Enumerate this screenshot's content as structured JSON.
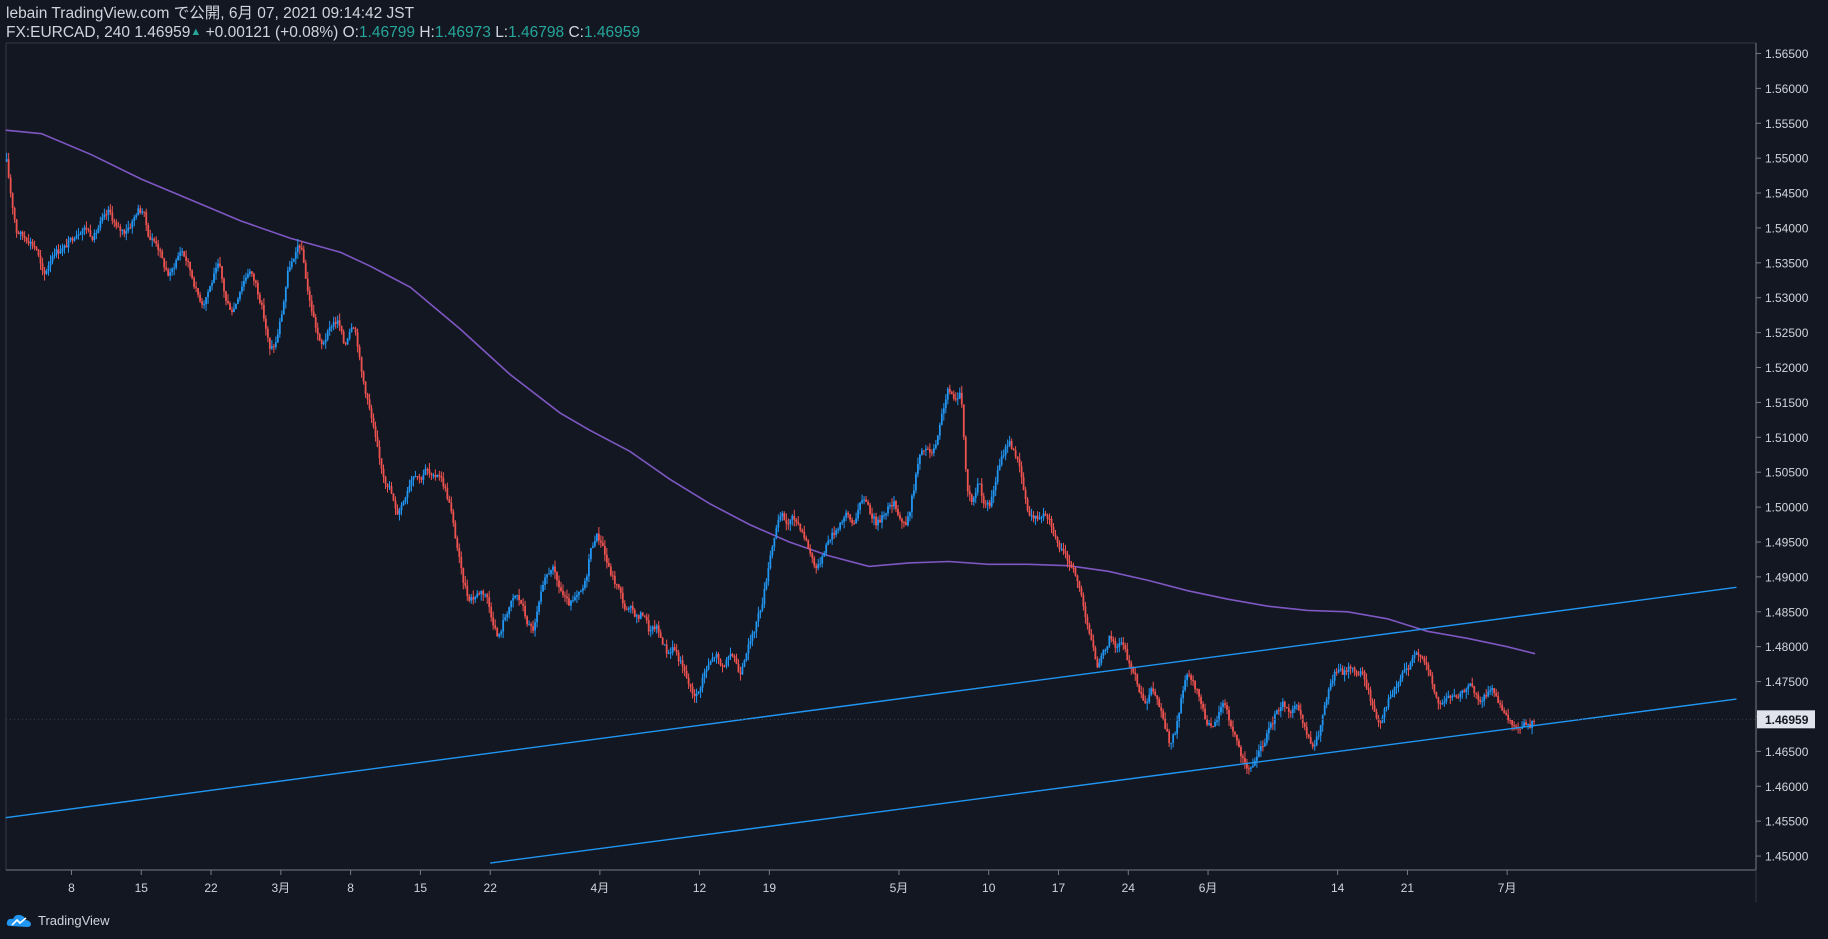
{
  "header": {
    "line1": "lebain TradingView.com で公開, 6月 07, 2021 09:14:42 JST",
    "symbol": "FX:EURCAD, 240",
    "last": "1.46959",
    "change": "+0.00121 (+0.08%)",
    "o_label": "O:",
    "o_value": "1.46799",
    "h_label": "H:",
    "h_value": "1.46973",
    "l_label": "L:",
    "l_value": "1.46798",
    "c_label": "C:",
    "c_value": "1.46959"
  },
  "footer": {
    "brand": "TradingView"
  },
  "colors": {
    "background": "#131722",
    "up": "#2196f3",
    "down": "#ef5350",
    "ma": "#7e57c2",
    "trendline": "#2196f3",
    "price_badge": "#e0e3eb"
  },
  "chart_data": {
    "type": "candlestick",
    "timeframe": "240",
    "y_axis": {
      "range": [
        1.448,
        1.5665
      ],
      "ticks": [
        "1.56500",
        "1.56000",
        "1.55500",
        "1.55000",
        "1.54500",
        "1.54000",
        "1.53500",
        "1.53000",
        "1.52500",
        "1.52000",
        "1.51500",
        "1.51000",
        "1.50500",
        "1.50000",
        "1.49500",
        "1.49000",
        "1.48500",
        "1.48000",
        "1.47500",
        "1.47000",
        "1.46500",
        "1.46000",
        "1.45500",
        "1.45000"
      ],
      "current_price_label": "1.46959",
      "current_price": 1.46959
    },
    "x_axis": {
      "ticks": [
        {
          "label": "8",
          "day": 8
        },
        {
          "label": "15",
          "day": 15
        },
        {
          "label": "22",
          "day": 22
        },
        {
          "label": "3月",
          "day": 29
        },
        {
          "label": "8",
          "day": 36
        },
        {
          "label": "15",
          "day": 43
        },
        {
          "label": "22",
          "day": 50
        },
        {
          "label": "4月",
          "day": 61
        },
        {
          "label": "12",
          "day": 71
        },
        {
          "label": "19",
          "day": 78
        },
        {
          "label": "5月",
          "day": 91
        },
        {
          "label": "10",
          "day": 100
        },
        {
          "label": "17",
          "day": 107
        },
        {
          "label": "24",
          "day": 114
        },
        {
          "label": "6月",
          "day": 122
        },
        {
          "label": "14",
          "day": 135
        },
        {
          "label": "21",
          "day": 142
        },
        {
          "label": "7月",
          "day": 152
        }
      ],
      "day_range": [
        1.4,
        154.8
      ]
    },
    "close_path": [
      [
        1.5,
        1.5495
      ],
      [
        2.0,
        1.544
      ],
      [
        2.5,
        1.5395
      ],
      [
        3.5,
        1.5385
      ],
      [
        4.5,
        1.537
      ],
      [
        5.2,
        1.533
      ],
      [
        6.2,
        1.5365
      ],
      [
        7.2,
        1.537
      ],
      [
        8.0,
        1.5385
      ],
      [
        8.8,
        1.5395
      ],
      [
        9.5,
        1.54
      ],
      [
        10.2,
        1.5385
      ],
      [
        11.0,
        1.541
      ],
      [
        11.8,
        1.5425
      ],
      [
        12.5,
        1.54
      ],
      [
        13.3,
        1.5395
      ],
      [
        14.0,
        1.5405
      ],
      [
        14.6,
        1.5425
      ],
      [
        15.2,
        1.5425
      ],
      [
        15.8,
        1.5385
      ],
      [
        16.5,
        1.538
      ],
      [
        17.2,
        1.535
      ],
      [
        17.8,
        1.533
      ],
      [
        18.4,
        1.535
      ],
      [
        19.0,
        1.537
      ],
      [
        19.8,
        1.5345
      ],
      [
        20.5,
        1.531
      ],
      [
        21.2,
        1.529
      ],
      [
        22.0,
        1.532
      ],
      [
        22.8,
        1.535
      ],
      [
        23.5,
        1.5295
      ],
      [
        24.2,
        1.528
      ],
      [
        25.0,
        1.5315
      ],
      [
        25.8,
        1.534
      ],
      [
        26.5,
        1.532
      ],
      [
        27.2,
        1.528
      ],
      [
        27.9,
        1.5225
      ],
      [
        28.5,
        1.5235
      ],
      [
        29.2,
        1.5285
      ],
      [
        29.8,
        1.5345
      ],
      [
        30.4,
        1.5355
      ],
      [
        30.8,
        1.538
      ],
      [
        31.2,
        1.536
      ],
      [
        31.8,
        1.53
      ],
      [
        32.4,
        1.5265
      ],
      [
        33.0,
        1.523
      ],
      [
        33.6,
        1.5245
      ],
      [
        34.2,
        1.5265
      ],
      [
        34.8,
        1.5265
      ],
      [
        35.4,
        1.523
      ],
      [
        35.8,
        1.525
      ],
      [
        36.2,
        1.5265
      ],
      [
        36.6,
        1.5245
      ],
      [
        37.0,
        1.52
      ],
      [
        37.6,
        1.516
      ],
      [
        38.2,
        1.512
      ],
      [
        38.8,
        1.5075
      ],
      [
        39.4,
        1.504
      ],
      [
        40.0,
        1.5025
      ],
      [
        40.6,
        1.499
      ],
      [
        41.2,
        1.5005
      ],
      [
        41.8,
        1.503
      ],
      [
        42.4,
        1.505
      ],
      [
        43.0,
        1.504
      ],
      [
        43.6,
        1.5055
      ],
      [
        44.2,
        1.504
      ],
      [
        44.8,
        1.505
      ],
      [
        45.4,
        1.503
      ],
      [
        46.0,
        1.5
      ],
      [
        46.6,
        1.495
      ],
      [
        47.2,
        1.49
      ],
      [
        47.8,
        1.487
      ],
      [
        48.4,
        1.487
      ],
      [
        49.0,
        1.488
      ],
      [
        49.6,
        1.4875
      ],
      [
        50.2,
        1.484
      ],
      [
        50.8,
        1.481
      ],
      [
        51.4,
        1.484
      ],
      [
        52.0,
        1.486
      ],
      [
        52.6,
        1.4875
      ],
      [
        53.2,
        1.486
      ],
      [
        53.8,
        1.483
      ],
      [
        54.4,
        1.4825
      ],
      [
        55.0,
        1.487
      ],
      [
        55.6,
        1.49
      ],
      [
        56.2,
        1.4915
      ],
      [
        56.8,
        1.489
      ],
      [
        57.4,
        1.487
      ],
      [
        58.0,
        1.486
      ],
      [
        58.6,
        1.487
      ],
      [
        59.2,
        1.488
      ],
      [
        59.6,
        1.4895
      ],
      [
        60.0,
        1.4935
      ],
      [
        60.6,
        1.496
      ],
      [
        61.2,
        1.495
      ],
      [
        61.8,
        1.4915
      ],
      [
        62.4,
        1.4895
      ],
      [
        63.0,
        1.488
      ],
      [
        63.6,
        1.485
      ],
      [
        64.2,
        1.4855
      ],
      [
        64.8,
        1.484
      ],
      [
        65.4,
        1.485
      ],
      [
        66.0,
        1.482
      ],
      [
        66.6,
        1.483
      ],
      [
        67.2,
        1.481
      ],
      [
        67.8,
        1.479
      ],
      [
        68.4,
        1.48
      ],
      [
        69.0,
        1.478
      ],
      [
        69.6,
        1.476
      ],
      [
        70.2,
        1.4735
      ],
      [
        70.8,
        1.473
      ],
      [
        71.4,
        1.476
      ],
      [
        72.0,
        1.4775
      ],
      [
        72.6,
        1.479
      ],
      [
        73.2,
        1.477
      ],
      [
        73.8,
        1.478
      ],
      [
        74.4,
        1.479
      ],
      [
        75.0,
        1.476
      ],
      [
        75.6,
        1.479
      ],
      [
        76.2,
        1.481
      ],
      [
        76.8,
        1.484
      ],
      [
        77.4,
        1.487
      ],
      [
        78.0,
        1.4925
      ],
      [
        78.6,
        1.4965
      ],
      [
        79.2,
        1.499
      ],
      [
        79.8,
        1.4975
      ],
      [
        80.4,
        1.4985
      ],
      [
        81.0,
        1.4975
      ],
      [
        81.6,
        1.4955
      ],
      [
        82.2,
        1.493
      ],
      [
        82.8,
        1.491
      ],
      [
        83.4,
        1.4935
      ],
      [
        84.0,
        1.4955
      ],
      [
        84.6,
        1.4965
      ],
      [
        85.2,
        1.498
      ],
      [
        85.8,
        1.499
      ],
      [
        86.4,
        1.4975
      ],
      [
        87.0,
        1.5
      ],
      [
        87.6,
        1.5015
      ],
      [
        88.2,
        1.499
      ],
      [
        88.8,
        1.4975
      ],
      [
        89.4,
        1.499
      ],
      [
        90.0,
        1.5
      ],
      [
        90.6,
        1.5005
      ],
      [
        91.2,
        1.498
      ],
      [
        91.8,
        1.4975
      ],
      [
        92.4,
        1.502
      ],
      [
        93.0,
        1.507
      ],
      [
        93.6,
        1.5085
      ],
      [
        94.2,
        1.5075
      ],
      [
        94.8,
        1.509
      ],
      [
        95.4,
        1.514
      ],
      [
        96.0,
        1.517
      ],
      [
        96.6,
        1.515
      ],
      [
        97.2,
        1.517
      ],
      [
        97.8,
        1.503
      ],
      [
        98.4,
        1.5005
      ],
      [
        99.0,
        1.504
      ],
      [
        99.6,
        1.5
      ],
      [
        100.2,
        1.5005
      ],
      [
        100.8,
        1.5045
      ],
      [
        101.4,
        1.5075
      ],
      [
        102.0,
        1.5095
      ],
      [
        102.6,
        1.508
      ],
      [
        103.2,
        1.505
      ],
      [
        103.8,
        1.5
      ],
      [
        104.4,
        1.4985
      ],
      [
        105.0,
        1.4985
      ],
      [
        105.6,
        1.4995
      ],
      [
        106.2,
        1.498
      ],
      [
        106.8,
        1.495
      ],
      [
        107.4,
        1.4935
      ],
      [
        108.0,
        1.4925
      ],
      [
        108.6,
        1.4905
      ],
      [
        109.2,
        1.488
      ],
      [
        109.8,
        1.484
      ],
      [
        110.4,
        1.48
      ],
      [
        111.0,
        1.477
      ],
      [
        111.6,
        1.4795
      ],
      [
        112.2,
        1.4815
      ],
      [
        112.8,
        1.48
      ],
      [
        113.4,
        1.4805
      ],
      [
        114.0,
        1.478
      ],
      [
        114.6,
        1.476
      ],
      [
        115.2,
        1.4735
      ],
      [
        115.8,
        1.472
      ],
      [
        116.4,
        1.474
      ],
      [
        117.0,
        1.472
      ],
      [
        117.6,
        1.469
      ],
      [
        118.2,
        1.466
      ],
      [
        118.8,
        1.468
      ],
      [
        119.4,
        1.4735
      ],
      [
        120.0,
        1.476
      ],
      [
        120.6,
        1.4745
      ],
      [
        121.2,
        1.4725
      ],
      [
        121.8,
        1.4695
      ],
      [
        122.4,
        1.468
      ],
      [
        123.0,
        1.47
      ],
      [
        123.6,
        1.4725
      ],
      [
        124.2,
        1.469
      ],
      [
        124.8,
        1.467
      ],
      [
        125.4,
        1.464
      ],
      [
        126.0,
        1.462
      ],
      [
        126.6,
        1.4635
      ],
      [
        127.2,
        1.465
      ],
      [
        127.8,
        1.467
      ],
      [
        128.4,
        1.469
      ],
      [
        129.0,
        1.471
      ],
      [
        129.6,
        1.472
      ],
      [
        130.2,
        1.4705
      ],
      [
        130.8,
        1.4715
      ],
      [
        131.4,
        1.4695
      ],
      [
        132.0,
        1.467
      ],
      [
        132.6,
        1.4655
      ],
      [
        133.2,
        1.468
      ],
      [
        133.8,
        1.472
      ],
      [
        134.4,
        1.475
      ],
      [
        135.0,
        1.477
      ],
      [
        135.6,
        1.476
      ],
      [
        136.2,
        1.4775
      ],
      [
        136.8,
        1.476
      ],
      [
        137.4,
        1.4765
      ],
      [
        138.0,
        1.474
      ],
      [
        138.6,
        1.471
      ],
      [
        139.2,
        1.469
      ],
      [
        139.8,
        1.4715
      ],
      [
        140.4,
        1.473
      ],
      [
        141.0,
        1.4745
      ],
      [
        141.6,
        1.4765
      ],
      [
        142.2,
        1.477
      ],
      [
        142.8,
        1.479
      ],
      [
        143.4,
        1.479
      ],
      [
        144.0,
        1.477
      ],
      [
        144.6,
        1.474
      ],
      [
        145.2,
        1.4715
      ],
      [
        145.8,
        1.4725
      ],
      [
        146.4,
        1.473
      ],
      [
        147.0,
        1.4725
      ],
      [
        147.6,
        1.4735
      ],
      [
        148.2,
        1.475
      ],
      [
        148.8,
        1.473
      ],
      [
        149.4,
        1.472
      ],
      [
        150.0,
        1.4735
      ],
      [
        150.6,
        1.474
      ],
      [
        151.2,
        1.4715
      ],
      [
        151.8,
        1.47
      ],
      [
        152.4,
        1.469
      ],
      [
        153.0,
        1.468
      ],
      [
        153.6,
        1.469
      ],
      [
        154.2,
        1.4685
      ],
      [
        154.8,
        1.4696
      ]
    ],
    "moving_average": [
      [
        1.4,
        1.554
      ],
      [
        5.0,
        1.5535
      ],
      [
        10.0,
        1.5505
      ],
      [
        15.0,
        1.547
      ],
      [
        20.0,
        1.544
      ],
      [
        25.0,
        1.541
      ],
      [
        30.0,
        1.5385
      ],
      [
        35.0,
        1.5365
      ],
      [
        38.0,
        1.5345
      ],
      [
        42.0,
        1.5315
      ],
      [
        47.0,
        1.5255
      ],
      [
        52.0,
        1.519
      ],
      [
        57.0,
        1.5135
      ],
      [
        60.0,
        1.511
      ],
      [
        64.0,
        1.508
      ],
      [
        68.0,
        1.504
      ],
      [
        72.0,
        1.5005
      ],
      [
        76.0,
        1.4975
      ],
      [
        80.0,
        1.495
      ],
      [
        84.0,
        1.493
      ],
      [
        88.0,
        1.4915
      ],
      [
        92.0,
        1.492
      ],
      [
        96.0,
        1.4922
      ],
      [
        100.0,
        1.4918
      ],
      [
        104.0,
        1.4918
      ],
      [
        108.0,
        1.4916
      ],
      [
        112.0,
        1.4908
      ],
      [
        116.0,
        1.4895
      ],
      [
        120.0,
        1.488
      ],
      [
        124.0,
        1.4868
      ],
      [
        128.0,
        1.4858
      ],
      [
        132.0,
        1.4852
      ],
      [
        136.0,
        1.485
      ],
      [
        140.0,
        1.484
      ],
      [
        144.0,
        1.4822
      ],
      [
        148.0,
        1.4812
      ],
      [
        152.0,
        1.48
      ],
      [
        154.8,
        1.479
      ]
    ],
    "trendlines": [
      {
        "from": [
          1.4,
          1.4555
        ],
        "to": [
          175.0,
          1.4885
        ]
      },
      {
        "from": [
          50.0,
          1.449
        ],
        "to": [
          175.0,
          1.4725
        ]
      }
    ]
  }
}
